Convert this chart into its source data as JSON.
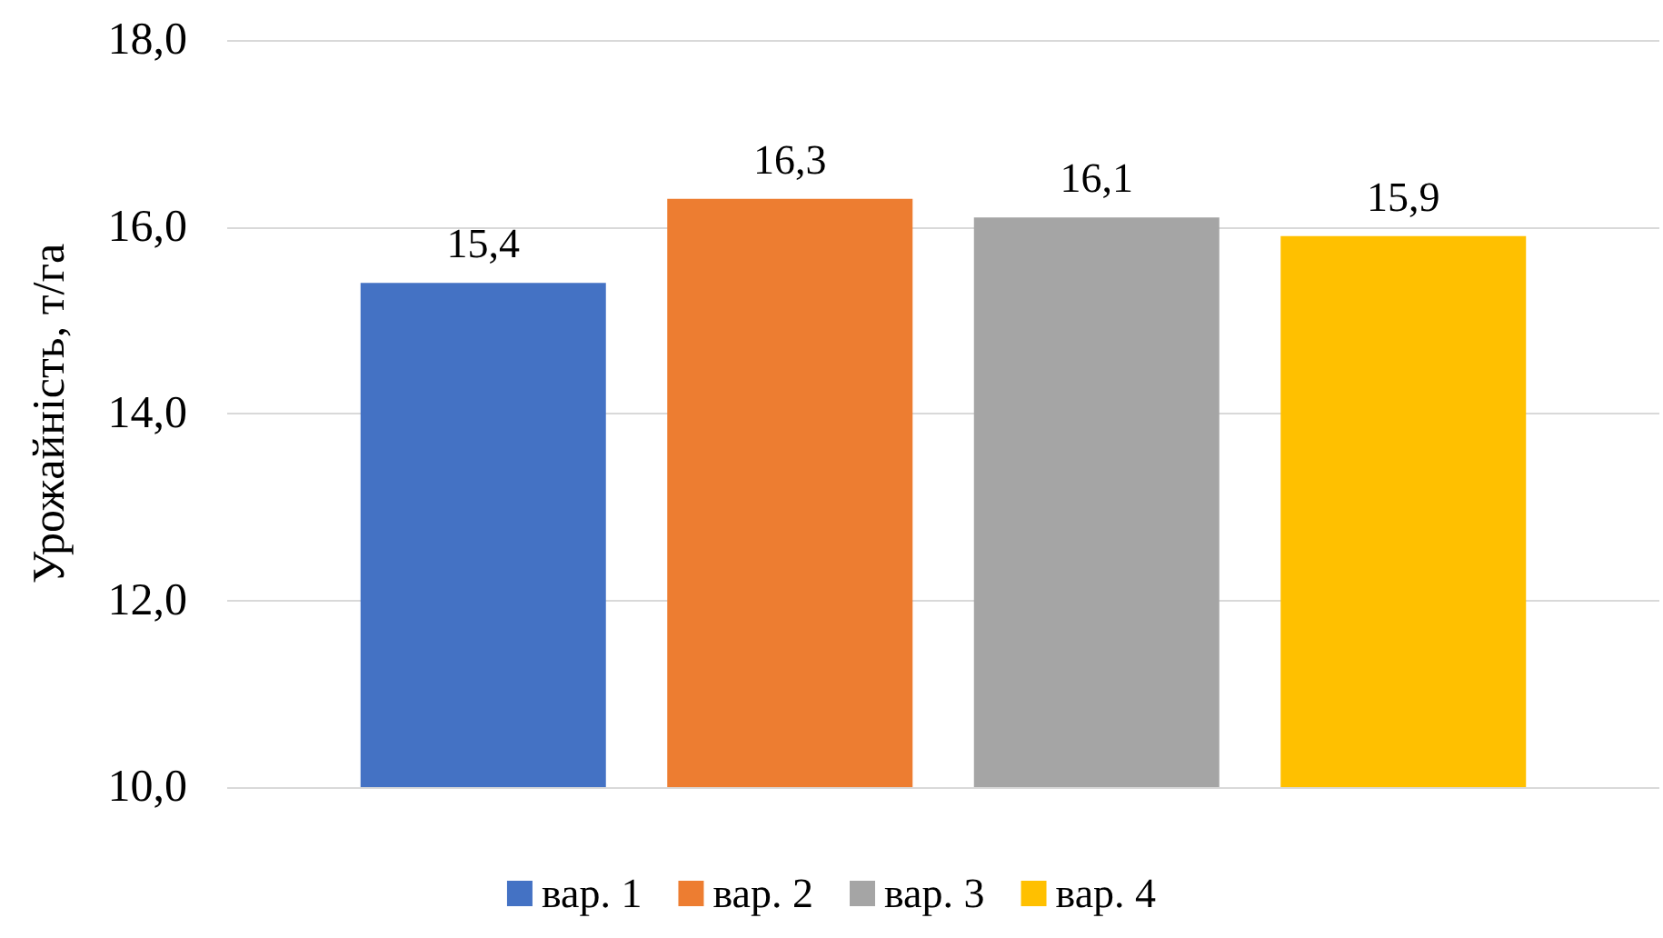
{
  "chart_data": {
    "type": "bar",
    "ylabel": "Урожайність, т/га",
    "categories": [
      null
    ],
    "series": [
      {
        "name": "вар. 1",
        "color": "#4472c4",
        "values": [
          15.4
        ],
        "value_labels": [
          "15,4"
        ]
      },
      {
        "name": "вар. 2",
        "color": "#ed7d31",
        "values": [
          16.3
        ],
        "value_labels": [
          "16,3"
        ]
      },
      {
        "name": "вар. 3",
        "color": "#a5a5a5",
        "values": [
          16.1
        ],
        "value_labels": [
          "16,1"
        ]
      },
      {
        "name": "вар. 4",
        "color": "#ffc000",
        "values": [
          15.9
        ],
        "value_labels": [
          "15,9"
        ]
      }
    ],
    "ylim": [
      10,
      18
    ],
    "yticks": [
      {
        "value": 10,
        "label": "10,0"
      },
      {
        "value": 12,
        "label": "12,0"
      },
      {
        "value": 14,
        "label": "14,0"
      },
      {
        "value": 16,
        "label": "16,0"
      },
      {
        "value": 18,
        "label": "18,0"
      }
    ],
    "grid": "y",
    "legend": "bottom"
  }
}
